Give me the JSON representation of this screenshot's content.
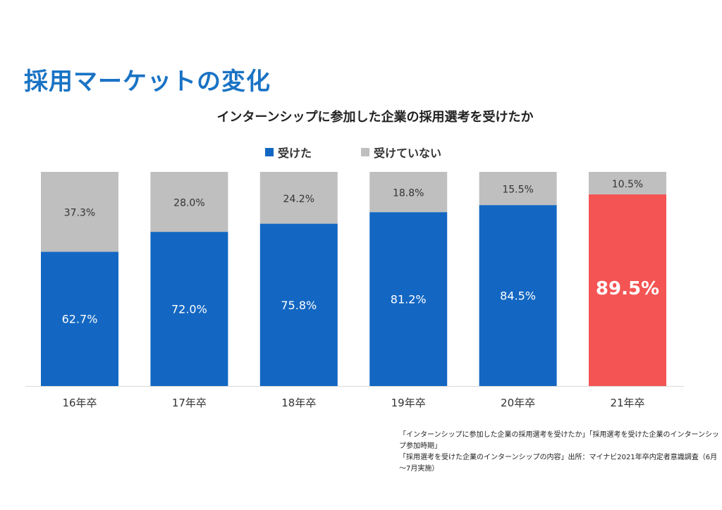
{
  "page": {
    "title": "採用マーケットの変化"
  },
  "colors": {
    "accepted": "#1367c2",
    "not_accepted": "#bfbfbf",
    "highlight": "#f45454"
  },
  "chart_data": {
    "type": "bar",
    "stacked": true,
    "title": "インターンシップに参加した企業の採用選考を受けたか",
    "categories": [
      "16年卒",
      "17年卒",
      "18年卒",
      "19年卒",
      "20年卒",
      "21年卒"
    ],
    "series": [
      {
        "name": "受けた",
        "values": [
          62.7,
          72.0,
          75.8,
          81.2,
          84.5,
          89.5
        ],
        "labels": [
          "62.7%",
          "72.0%",
          "75.8%",
          "81.2%",
          "84.5%",
          "89.5%"
        ]
      },
      {
        "name": "受けていない",
        "values": [
          37.3,
          28.0,
          24.2,
          18.8,
          15.5,
          10.5
        ],
        "labels": [
          "37.3%",
          "28.0%",
          "24.2%",
          "18.8%",
          "15.5%",
          "10.5%"
        ]
      }
    ],
    "highlight_category": "21年卒",
    "ylim": [
      0,
      100
    ],
    "legend_position": "top",
    "grid": false
  },
  "source": {
    "line1": "「インターンシップに参加した企業の採用選考を受けたか」「採用選考を受けた企業のインターンシップ参加時期」",
    "line2": "「採用選考を受けた企業のインターンシップの内容」出所：マイナビ2021年卒内定者意識調査（6月～7月実施）"
  }
}
